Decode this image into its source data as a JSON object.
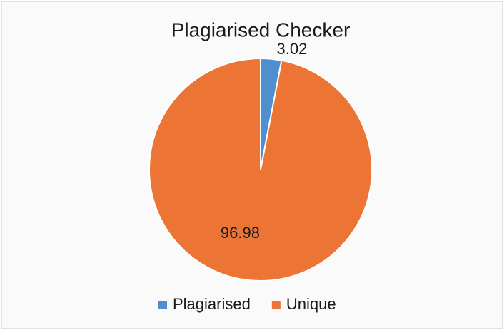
{
  "chart_data": {
    "type": "pie",
    "title": "Plagiarised Checker",
    "categories": [
      "Plagiarised",
      "Unique"
    ],
    "values": [
      3.02,
      96.98
    ],
    "colors": [
      "#4f8fd0",
      "#ec7535"
    ],
    "legend": "bottom"
  }
}
